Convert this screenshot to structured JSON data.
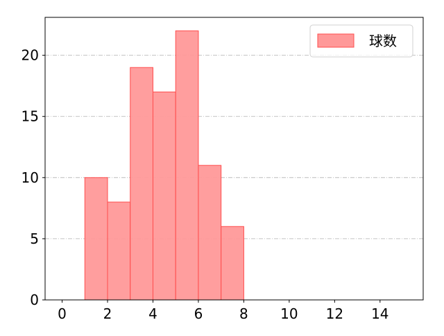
{
  "chart_data": {
    "type": "bar",
    "subtype": "histogram",
    "bins": [
      [
        1,
        2
      ],
      [
        2,
        3
      ],
      [
        3,
        4
      ],
      [
        4,
        5
      ],
      [
        5,
        6
      ],
      [
        6,
        7
      ],
      [
        7,
        8
      ]
    ],
    "series": [
      {
        "name": "球数",
        "values": [
          10,
          8,
          19,
          17,
          22,
          11,
          6
        ]
      }
    ],
    "xlim": [
      -0.75,
      15.9
    ],
    "ylim": [
      0,
      23.1
    ],
    "xticks": [
      0,
      2,
      4,
      6,
      8,
      10,
      12,
      14
    ],
    "yticks": [
      0,
      5,
      10,
      15,
      20
    ],
    "grid": "y, dash-dot",
    "legend": "top-right",
    "colors": {
      "fill": "#ff9999",
      "edge": "#ff4d4d",
      "grid": "#b0b0b0"
    }
  }
}
